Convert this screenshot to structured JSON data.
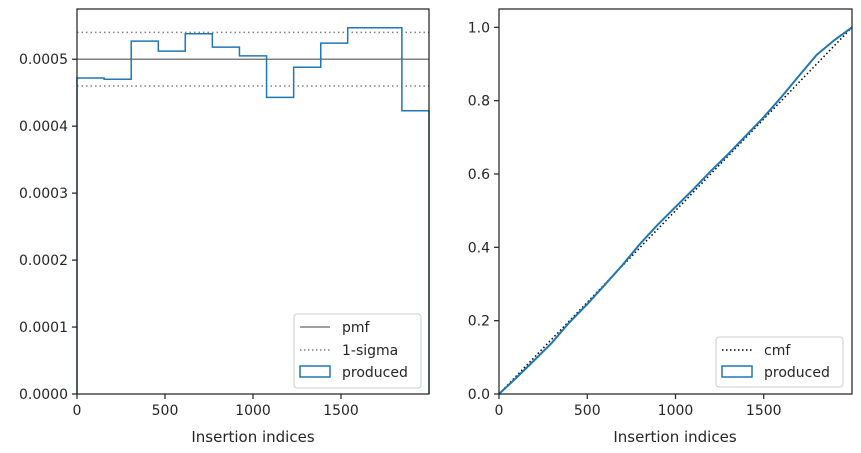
{
  "colors": {
    "produced": "#1f77b4",
    "pmf": "#808080",
    "sigma": "#808080",
    "cmf": "#000000",
    "axes": "#262626"
  },
  "chart_data": [
    {
      "type": "histogram-step",
      "xlabel": "Insertion indices",
      "ylabel": "",
      "xlim": [
        0,
        2000
      ],
      "ylim": [
        0,
        0.000575
      ],
      "x_ticks": [
        0,
        500,
        1000,
        1500
      ],
      "x_tick_labels": [
        "0",
        "500",
        "1000",
        "1500"
      ],
      "y_ticks": [
        0,
        0.0001,
        0.0002,
        0.0003,
        0.0004,
        0.0005
      ],
      "y_tick_labels": [
        "0.0000",
        "0.0001",
        "0.0002",
        "0.0003",
        "0.0004",
        "0.0005"
      ],
      "pmf": 0.0005,
      "sigma_band": [
        0.00046,
        0.00054
      ],
      "bin_edges": [
        0,
        154,
        308,
        462,
        615,
        769,
        923,
        1077,
        1231,
        1385,
        1538,
        1692,
        1846,
        2000
      ],
      "values": [
        0.000472,
        0.00047,
        0.000527,
        0.000512,
        0.000538,
        0.000518,
        0.000505,
        0.000443,
        0.000488,
        0.000524,
        0.000547,
        0.000547,
        0.000423
      ],
      "legend": {
        "position": "lower-right",
        "entries": [
          {
            "label": "pmf",
            "style": "solid-line"
          },
          {
            "label": "1-sigma",
            "style": "dotted-line"
          },
          {
            "label": "produced",
            "style": "patch"
          }
        ]
      }
    },
    {
      "type": "line",
      "xlabel": "Insertion indices",
      "ylabel": "",
      "xlim": [
        0,
        2000
      ],
      "ylim": [
        0,
        1.05
      ],
      "x_ticks": [
        0,
        500,
        1000,
        1500
      ],
      "x_tick_labels": [
        "0",
        "500",
        "1000",
        "1500"
      ],
      "y_ticks": [
        0,
        0.2,
        0.4,
        0.6,
        0.8,
        1.0
      ],
      "y_tick_labels": [
        "0.0",
        "0.2",
        "0.4",
        "0.6",
        "0.8",
        "1.0"
      ],
      "series": [
        {
          "name": "cmf",
          "style": "dotted",
          "x": [
            0,
            2000
          ],
          "y": [
            0,
            1.0
          ]
        },
        {
          "name": "produced",
          "style": "solid",
          "x": [
            0,
            100,
            200,
            300,
            400,
            500,
            600,
            700,
            800,
            900,
            1000,
            1100,
            1200,
            1300,
            1400,
            1500,
            1600,
            1700,
            1800,
            1900,
            2000
          ],
          "y": [
            0,
            0.045,
            0.092,
            0.14,
            0.196,
            0.245,
            0.298,
            0.352,
            0.41,
            0.462,
            0.51,
            0.558,
            0.608,
            0.655,
            0.705,
            0.755,
            0.81,
            0.868,
            0.925,
            0.965,
            1.0
          ]
        }
      ],
      "legend": {
        "position": "lower-right",
        "entries": [
          {
            "label": "cmf",
            "style": "dotted-line"
          },
          {
            "label": "produced",
            "style": "patch"
          }
        ]
      }
    }
  ]
}
